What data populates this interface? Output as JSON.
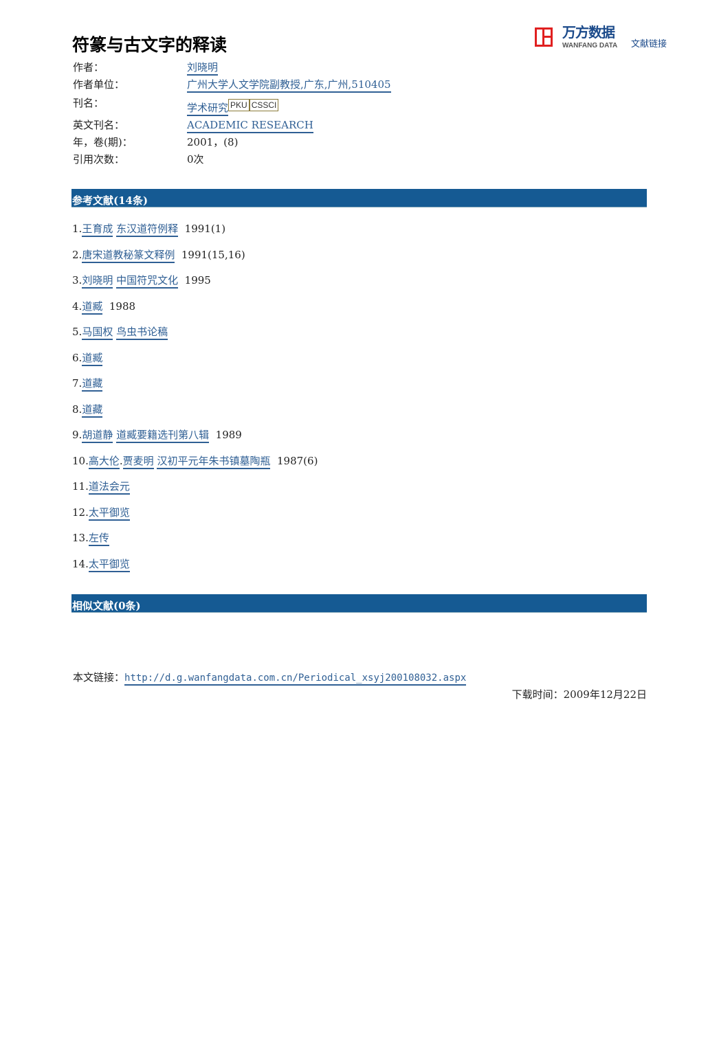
{
  "title": "符篆与古文字的释读",
  "logo": {
    "cn": "万方数据",
    "en": "WANFANG DATA",
    "link_text": "文献链接",
    "brand_color": "#e02020"
  },
  "meta": [
    {
      "label": "作者：",
      "value": "刘晓明",
      "link": true
    },
    {
      "label": "作者单位：",
      "value": "广州大学人文学院副教授,广东,广州,510405",
      "link": true
    },
    {
      "label": "刊名：",
      "value": "学术研究",
      "link": true,
      "badges": [
        "PKU",
        "CSSCI"
      ]
    },
    {
      "label": "英文刊名：",
      "value": "ACADEMIC RESEARCH",
      "link": true
    },
    {
      "label": "年，卷(期)：",
      "value": "2001，(8)",
      "link": false
    },
    {
      "label": "引用次数：",
      "value": "0次",
      "link": false
    }
  ],
  "references_header": "参考文献(14条)",
  "references": [
    {
      "num": "1.",
      "parts": [
        {
          "text": "王育成",
          "link": true
        },
        {
          "text": " ",
          "link": false
        },
        {
          "text": "东汉道符例释",
          "link": true
        },
        {
          "text": "  1991(1)",
          "link": false
        }
      ]
    },
    {
      "num": "2.",
      "parts": [
        {
          "text": "唐宋道教秘篆文释例",
          "link": true
        },
        {
          "text": "  1991(15,16)",
          "link": false
        }
      ]
    },
    {
      "num": "3.",
      "parts": [
        {
          "text": "刘晓明",
          "link": true
        },
        {
          "text": " ",
          "link": false
        },
        {
          "text": "中国符咒文化",
          "link": true
        },
        {
          "text": "  1995",
          "link": false
        }
      ]
    },
    {
      "num": "4.",
      "parts": [
        {
          "text": "道臧",
          "link": true
        },
        {
          "text": "  1988",
          "link": false
        }
      ]
    },
    {
      "num": "5.",
      "parts": [
        {
          "text": "马国权",
          "link": true
        },
        {
          "text": " ",
          "link": false
        },
        {
          "text": "鸟虫书论稿",
          "link": true
        }
      ]
    },
    {
      "num": "6.",
      "parts": [
        {
          "text": "道臧",
          "link": true
        }
      ]
    },
    {
      "num": "7.",
      "parts": [
        {
          "text": "道藏",
          "link": true
        }
      ]
    },
    {
      "num": "8.",
      "parts": [
        {
          "text": "道藏",
          "link": true
        }
      ]
    },
    {
      "num": "9.",
      "parts": [
        {
          "text": "胡道静",
          "link": true
        },
        {
          "text": " ",
          "link": false
        },
        {
          "text": "道臧要籍选刊第八辑",
          "link": true
        },
        {
          "text": "  1989",
          "link": false
        }
      ]
    },
    {
      "num": "10.",
      "parts": [
        {
          "text": "高大伦",
          "link": true
        },
        {
          "text": ".",
          "link": false
        },
        {
          "text": "贾麦明",
          "link": true
        },
        {
          "text": " ",
          "link": false
        },
        {
          "text": "汉初平元年朱书镇墓陶瓶",
          "link": true
        },
        {
          "text": "  1987(6)",
          "link": false
        }
      ]
    },
    {
      "num": "11.",
      "parts": [
        {
          "text": "道法会元",
          "link": true
        }
      ]
    },
    {
      "num": "12.",
      "parts": [
        {
          "text": "太平御览",
          "link": true
        }
      ]
    },
    {
      "num": "13.",
      "parts": [
        {
          "text": "左传",
          "link": true
        }
      ]
    },
    {
      "num": "14.",
      "parts": [
        {
          "text": "太平御览",
          "link": true
        }
      ]
    }
  ],
  "similar_header": "相似文献(0条)",
  "footer": {
    "link_label": "本文链接：",
    "url": "http://d.g.wanfangdata.com.cn/Periodical_xsyj200108032.aspx",
    "download_time": "下载时间：2009年12月22日"
  },
  "colors": {
    "header_bar": "#155a93",
    "link": "#2f5f94"
  }
}
